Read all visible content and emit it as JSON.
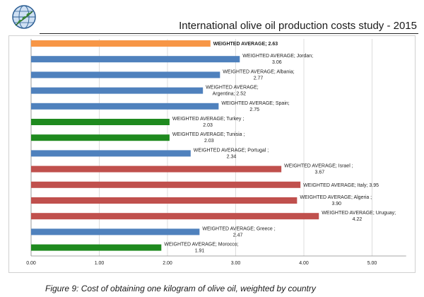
{
  "header": {
    "title": "International olive oil production costs study - 2015",
    "logo_icon": "globe-olive-branch-icon"
  },
  "caption": "Figure 9: Cost of obtaining one kilogram of olive oil, weighted by country",
  "chart_data": {
    "type": "bar",
    "orientation": "horizontal",
    "title": "",
    "xlabel": "",
    "ylabel": "",
    "xlim": [
      0,
      5.5
    ],
    "x_ticks": [
      "0.00",
      "1.00",
      "2.00",
      "3.00",
      "4.00",
      "5.00"
    ],
    "x_tick_values": [
      0,
      1,
      2,
      3,
      4,
      5
    ],
    "grid": true,
    "legend": "none",
    "colors": {
      "average": "#f79646",
      "blue": "#4f81bd",
      "green": "#1f8a1f",
      "red": "#c0504d"
    },
    "bars": [
      {
        "lines": [
          "WEIGHTED AVERAGE; 2.63"
        ],
        "value": 2.63,
        "color": "average",
        "bold": true
      },
      {
        "lines": [
          "WEIGHTED AVERAGE; Jordan;",
          "3.06"
        ],
        "value": 3.06,
        "color": "blue"
      },
      {
        "lines": [
          "WEIGHTED AVERAGE; Albania;",
          "2.77"
        ],
        "value": 2.77,
        "color": "blue"
      },
      {
        "lines": [
          "WEIGHTED AVERAGE;",
          "Argentina; 2.52"
        ],
        "value": 2.52,
        "color": "blue"
      },
      {
        "lines": [
          "WEIGHTED AVERAGE; Spain;",
          "2.75"
        ],
        "value": 2.75,
        "color": "blue"
      },
      {
        "lines": [
          "WEIGHTED AVERAGE; Turkey ;",
          "2.03"
        ],
        "value": 2.03,
        "color": "green"
      },
      {
        "lines": [
          "WEIGHTED AVERAGE; Tunisia ;",
          "2.03"
        ],
        "value": 2.03,
        "color": "green"
      },
      {
        "lines": [
          "WEIGHTED AVERAGE; Portugal ;",
          "2.34"
        ],
        "value": 2.34,
        "color": "blue"
      },
      {
        "lines": [
          "WEIGHTED AVERAGE; Israel ;",
          "3.67"
        ],
        "value": 3.67,
        "color": "red"
      },
      {
        "lines": [
          "WEIGHTED AVERAGE; Italy; 3.95"
        ],
        "value": 3.95,
        "color": "red"
      },
      {
        "lines": [
          "WEIGHTED AVERAGE; Algeria ;",
          "3.90"
        ],
        "value": 3.9,
        "color": "red"
      },
      {
        "lines": [
          "WEIGHTED AVERAGE; Uruguay;",
          "4.22"
        ],
        "value": 4.22,
        "color": "red"
      },
      {
        "lines": [
          "WEIGHTED AVERAGE; Greece ;",
          "2.47"
        ],
        "value": 2.47,
        "color": "blue"
      },
      {
        "lines": [
          "WEIGHTED AVERAGE; Morocco;",
          "1.91"
        ],
        "value": 1.91,
        "color": "green"
      }
    ]
  }
}
